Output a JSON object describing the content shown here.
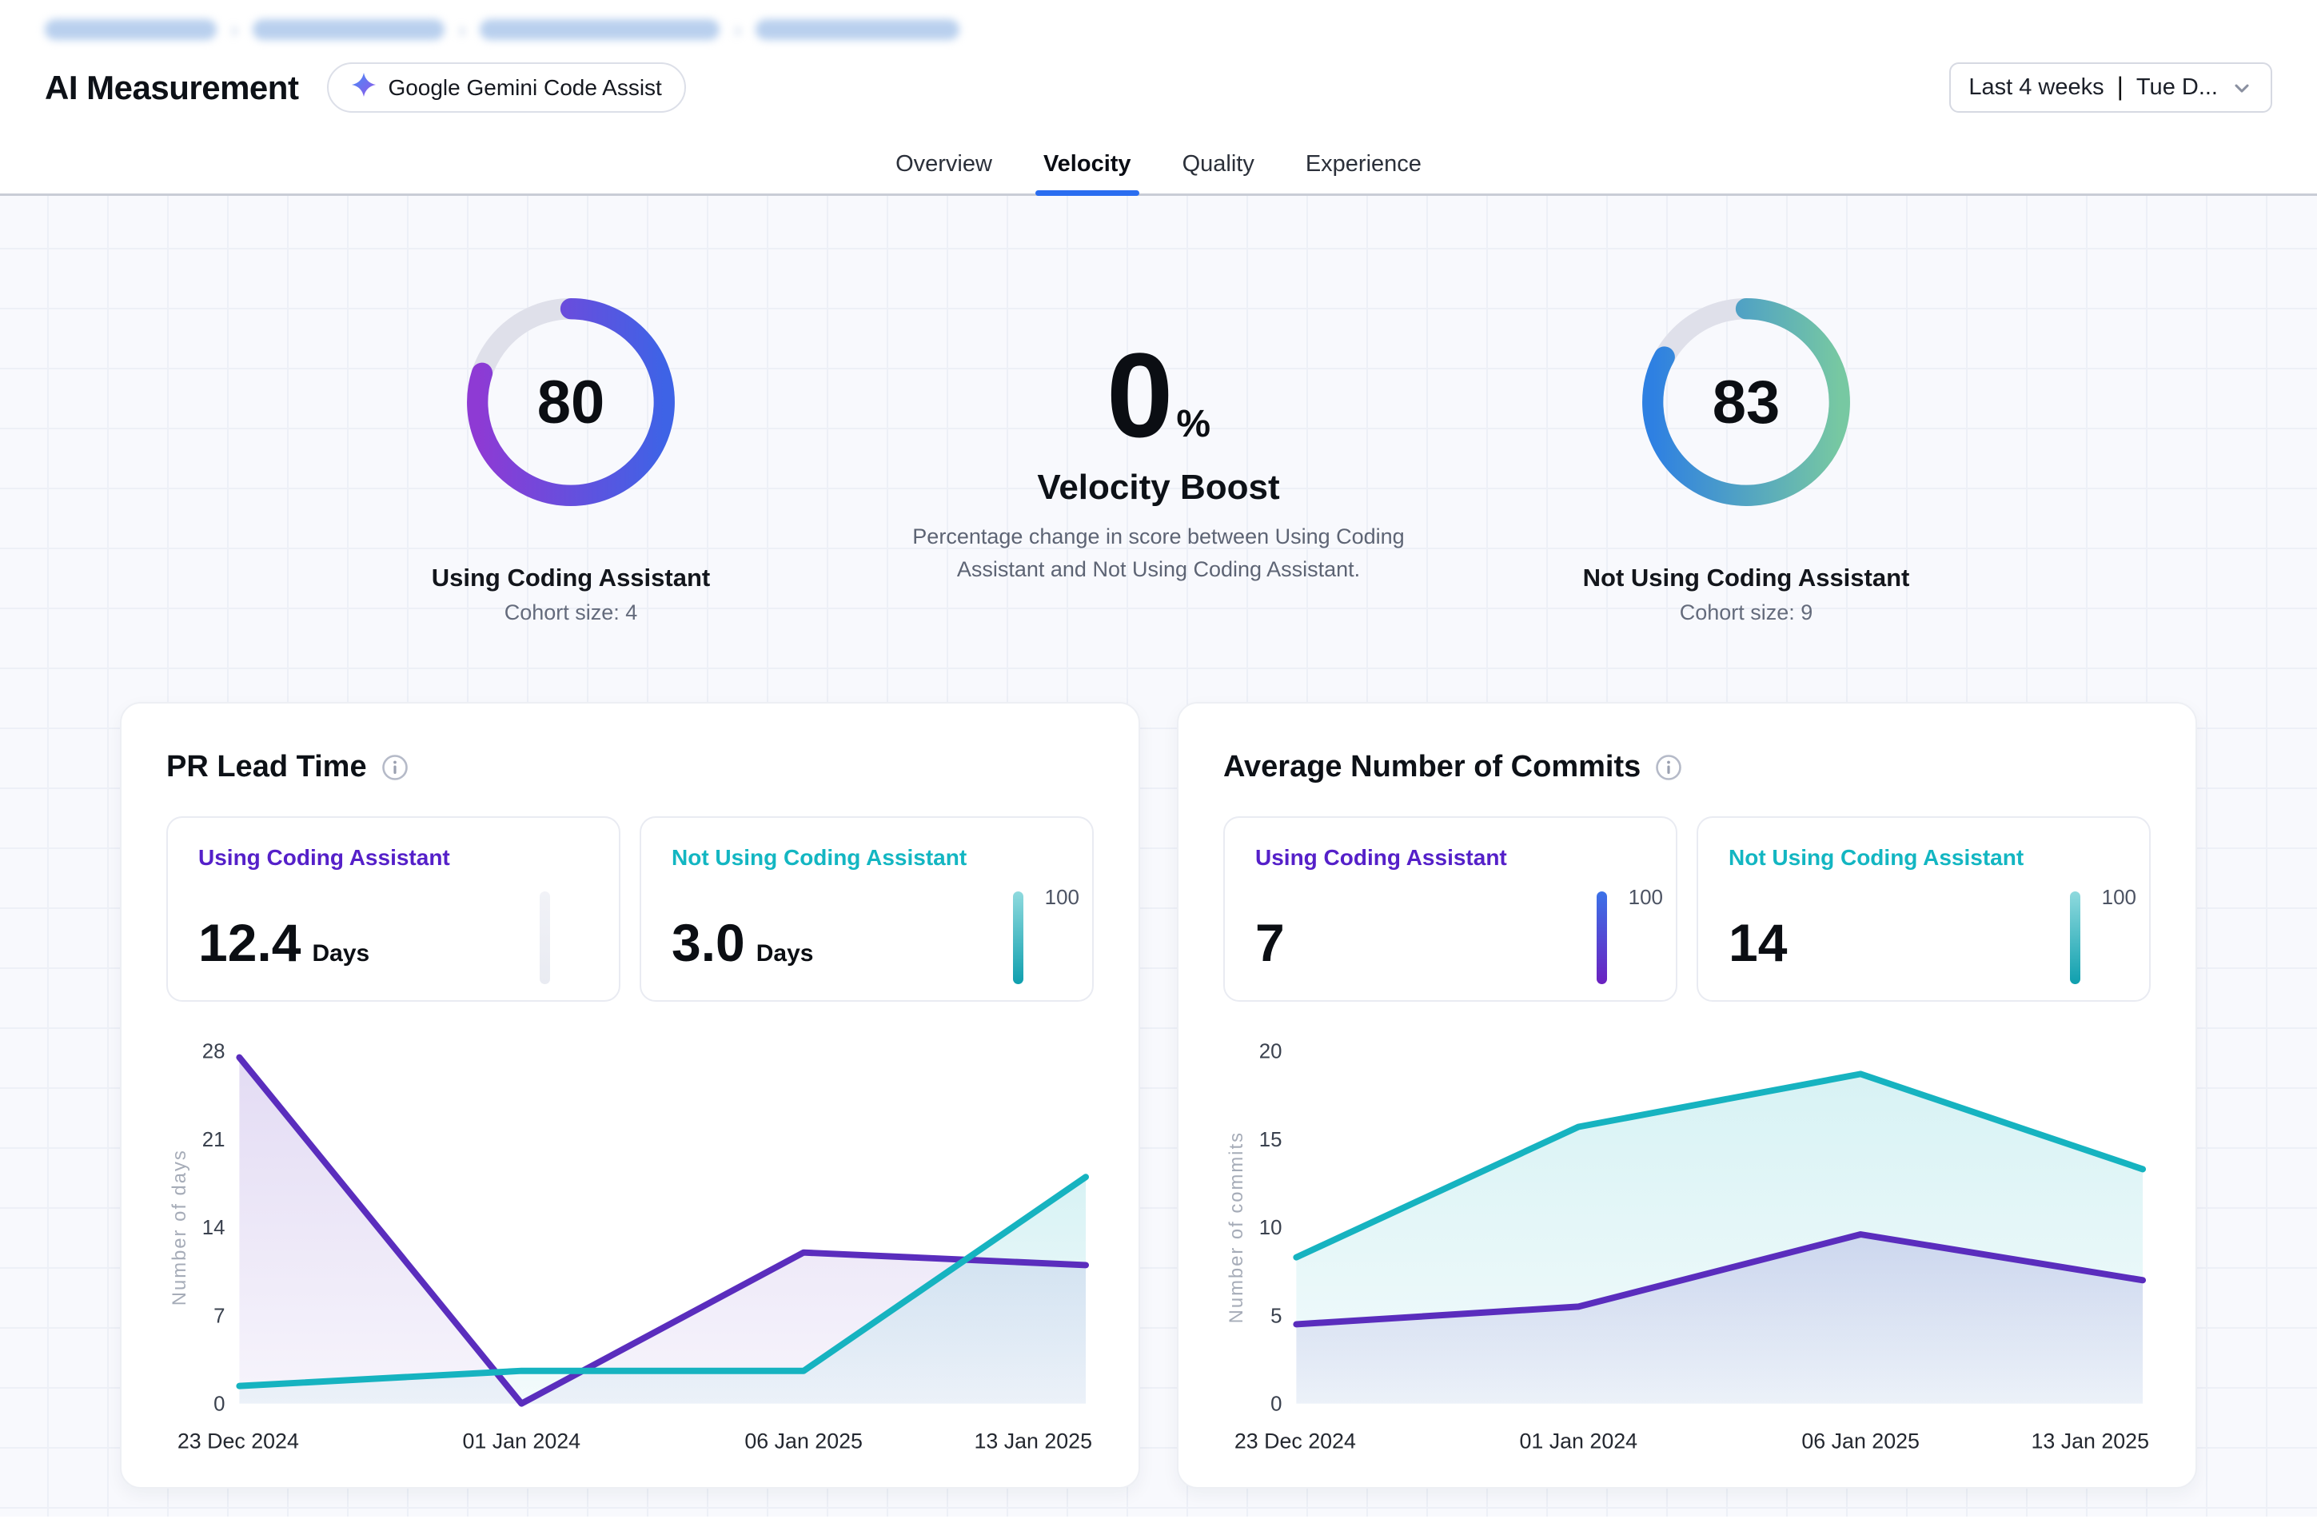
{
  "breadcrumb": {
    "redacted": true,
    "separator": "›",
    "segments": [
      "",
      "",
      "",
      ""
    ]
  },
  "header": {
    "title": "AI Measurement",
    "badge": {
      "icon": "gemini-sparkle-icon",
      "label": "Google Gemini Code Assist"
    },
    "date_filter": {
      "value": "Last 4 weeks",
      "separator": "|",
      "detail": "Tue D...",
      "icon": "chevron-down-icon"
    }
  },
  "tabs": [
    {
      "label": "Overview",
      "active": false
    },
    {
      "label": "Velocity",
      "active": true
    },
    {
      "label": "Quality",
      "active": false
    },
    {
      "label": "Experience",
      "active": false
    }
  ],
  "hero": {
    "left_gauge": {
      "value": "80",
      "percent": 80,
      "label": "Using Coding Assistant",
      "cohort": "Cohort size: 4",
      "gradient": [
        "#8e3ad4",
        "#3e63e6"
      ],
      "track": "#dfe0ea"
    },
    "boost": {
      "value": "0",
      "unit": "%",
      "title": "Velocity Boost",
      "description": "Percentage change in score between Using Coding Assistant and Not Using Coding Assistant."
    },
    "right_gauge": {
      "value": "83",
      "percent": 83,
      "label": "Not Using Coding Assistant",
      "cohort": "Cohort size: 9",
      "gradient": [
        "#2e80e2",
        "#77c8a2"
      ],
      "track": "#dfe0ea"
    }
  },
  "cards": [
    {
      "title": "PR Lead Time",
      "stats": [
        {
          "label": "Using Coding Assistant",
          "label_color": "#5520c9",
          "value": "12.4",
          "unit": "Days",
          "bar": {
            "colors": [
              "#f1f2f7",
              "#e9ebf2"
            ],
            "max_label": ""
          }
        },
        {
          "label": "Not Using Coding Assistant",
          "label_color": "#13b6c2",
          "value": "3.0",
          "unit": "Days",
          "bar": {
            "colors": [
              "#8fdade",
              "#0f9fae"
            ],
            "max_label": "100"
          }
        }
      ]
    },
    {
      "title": "Average Number of Commits",
      "stats": [
        {
          "label": "Using Coding Assistant",
          "label_color": "#5520c9",
          "value": "7",
          "unit": "",
          "bar": {
            "colors": [
              "#3b72e8",
              "#6b21c0"
            ],
            "max_label": "100"
          }
        },
        {
          "label": "Not Using Coding Assistant",
          "label_color": "#13b6c2",
          "value": "14",
          "unit": "",
          "bar": {
            "colors": [
              "#8fdade",
              "#0f9fae"
            ],
            "max_label": "100"
          }
        }
      ]
    }
  ],
  "chart_data": [
    {
      "type": "area",
      "title": "PR Lead Time",
      "categories": [
        "23 Dec 2024",
        "01 Jan 2024",
        "06 Jan 2025",
        "13 Jan 2025"
      ],
      "series": [
        {
          "name": "Using Coding Assistant",
          "color": "#5a2dbd",
          "values": [
            27.5,
            0,
            12,
            11
          ]
        },
        {
          "name": "Not Using Coding Assistant",
          "color": "#16b3c0",
          "values": [
            1.4,
            2.6,
            2.6,
            18
          ]
        }
      ],
      "xlabel": "",
      "ylabel": "Number of days",
      "ylim": [
        0,
        28
      ],
      "yticks": [
        0,
        7,
        14,
        21,
        28
      ],
      "grid": false,
      "legend": "none"
    },
    {
      "type": "area",
      "title": "Average Number of Commits",
      "categories": [
        "23 Dec 2024",
        "01 Jan 2024",
        "06 Jan 2025",
        "13 Jan 2025"
      ],
      "series": [
        {
          "name": "Using Coding Assistant",
          "color": "#5a2dbd",
          "values": [
            4.5,
            5.5,
            9.6,
            7
          ]
        },
        {
          "name": "Not Using Coding Assistant",
          "color": "#16b3c0",
          "values": [
            8.3,
            15.7,
            18.7,
            13.3
          ]
        }
      ],
      "xlabel": "",
      "ylabel": "Number of commits",
      "ylim": [
        0,
        20
      ],
      "yticks": [
        0,
        5,
        10,
        15,
        20
      ],
      "grid": false,
      "legend": "none"
    }
  ]
}
